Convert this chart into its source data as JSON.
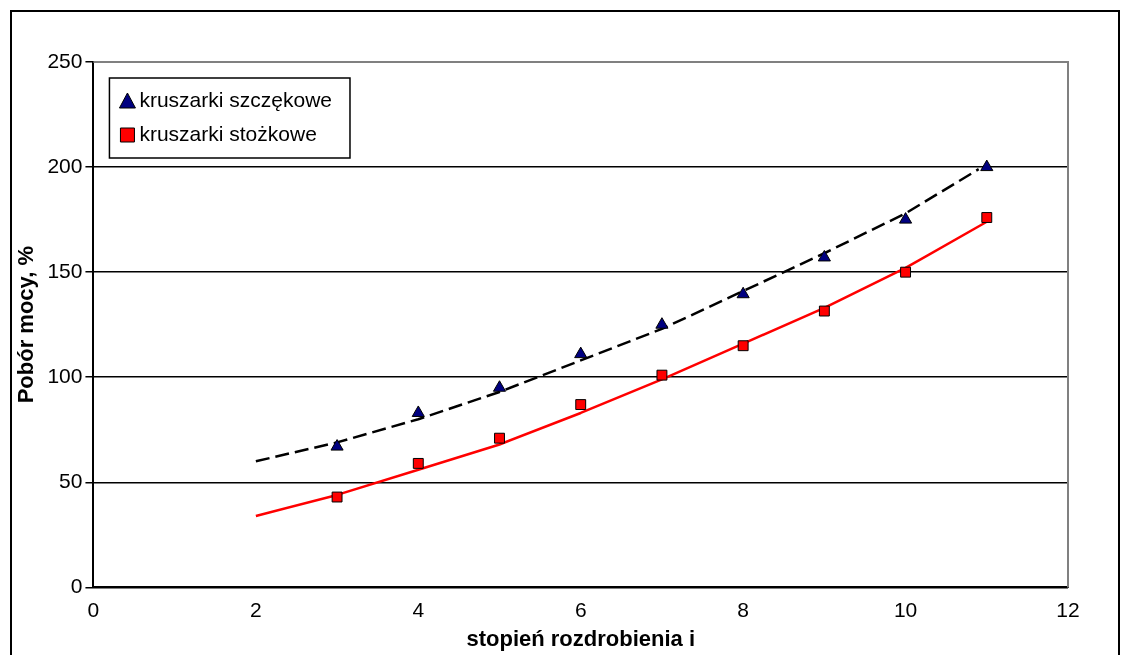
{
  "chart_data": {
    "type": "scatter",
    "xlabel": "stopień rozdrobienia i",
    "ylabel": "Pobór mocy, %",
    "x": [
      3,
      4,
      5,
      6,
      7,
      8,
      9,
      10,
      11
    ],
    "series": [
      {
        "name": "kruszarki szczękowe",
        "color": "#000080",
        "marker": "triangle",
        "values": [
          67,
          83,
          95,
          111,
          125,
          139.5,
          157,
          175,
          200
        ]
      },
      {
        "name": "kruszarki stożkowe",
        "color": "#ff0000",
        "marker": "square",
        "values": [
          43,
          59,
          71,
          87,
          101,
          115,
          131.5,
          150,
          176
        ]
      },
      {
        "type": "line",
        "color": "#000000",
        "line_style": "dashed",
        "marker": "none",
        "x": [
          2,
          3,
          4,
          5,
          6,
          7,
          8,
          9,
          10,
          10.9
        ],
        "values": [
          60,
          69,
          80,
          93,
          108,
          123,
          141,
          159,
          178,
          199
        ]
      },
      {
        "type": "line",
        "color": "#ff0000",
        "line_style": "solid",
        "marker": "none",
        "x": [
          2,
          3,
          4,
          5,
          6,
          7,
          8,
          9,
          10,
          11
        ],
        "values": [
          34,
          44,
          56,
          68,
          83,
          99,
          116,
          133,
          152,
          174
        ]
      }
    ],
    "xlim": [
      0,
      12
    ],
    "xticks": [
      0,
      2,
      4,
      6,
      8,
      10,
      12
    ],
    "ylim": [
      0,
      250
    ],
    "yticks": [
      0,
      50,
      100,
      150,
      200,
      250
    ],
    "grid": "y",
    "legend": "top left"
  }
}
